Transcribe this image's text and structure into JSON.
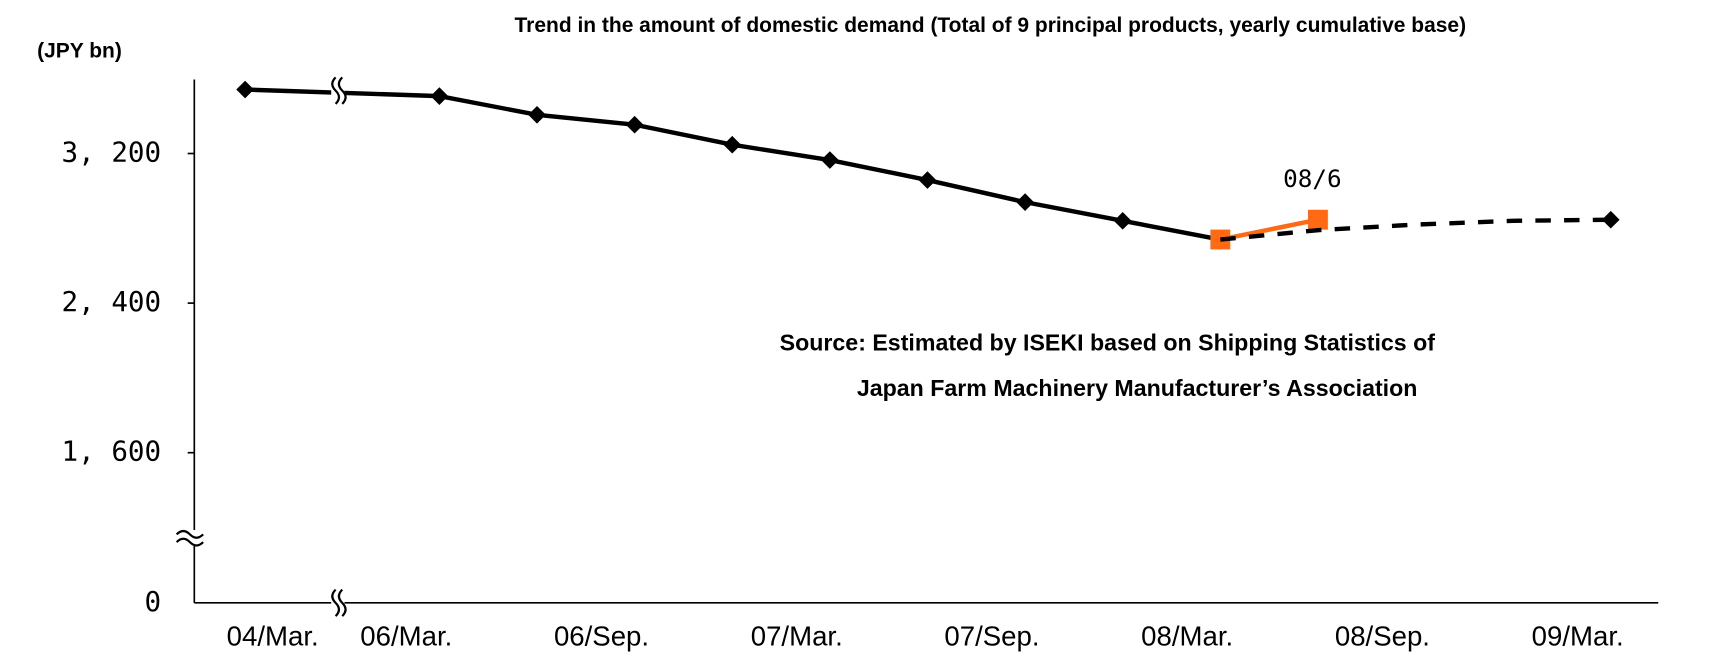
{
  "chart_data": {
    "type": "line",
    "title": "Trend in the amount of domestic demand (Total of 9 principal products, yearly cumulative base)",
    "y_label": "(JPY bn)",
    "annotation": "08/6",
    "source": [
      "Source: Estimated by ISEKI based on Shipping Statistics of",
      "Japan Farm Machinery Manufacturer’s Association"
    ],
    "categories": [
      "04/Mar.",
      "06/Mar.",
      null,
      "06/Sep.",
      null,
      "07/Mar.",
      null,
      "07/Sep.",
      null,
      "08/Mar.",
      null,
      "08/Sep.",
      null,
      "09/Mar."
    ],
    "series": [
      {
        "color": "#000000",
        "marker": "diamond",
        "dash": false,
        "values": [
          3542,
          3507,
          3407,
          3354,
          3247,
          3165,
          3058,
          2940,
          2840,
          2740,
          null,
          null,
          null,
          null
        ]
      },
      {
        "color": "#ff6a13",
        "marker": "square",
        "dash": false,
        "values": [
          null,
          null,
          null,
          null,
          null,
          null,
          null,
          null,
          null,
          2740,
          2846,
          null,
          null,
          null
        ]
      },
      {
        "color": "#000000",
        "marker": "diamond",
        "marker_at": "end",
        "dash": true,
        "values": [
          null,
          null,
          null,
          null,
          null,
          null,
          null,
          null,
          null,
          2740,
          2790,
          2820,
          2840,
          2846
        ]
      }
    ],
    "ylim": [
      0,
      3600
    ],
    "yticks": [
      0,
      {
        "value": 1600,
        "label": "1, 600"
      },
      {
        "value": 2400,
        "label": "2, 400"
      },
      {
        "value": 3200,
        "label": "3, 200"
      }
    ],
    "y_axis_break": true,
    "x_axis_break": true,
    "grid": false
  }
}
